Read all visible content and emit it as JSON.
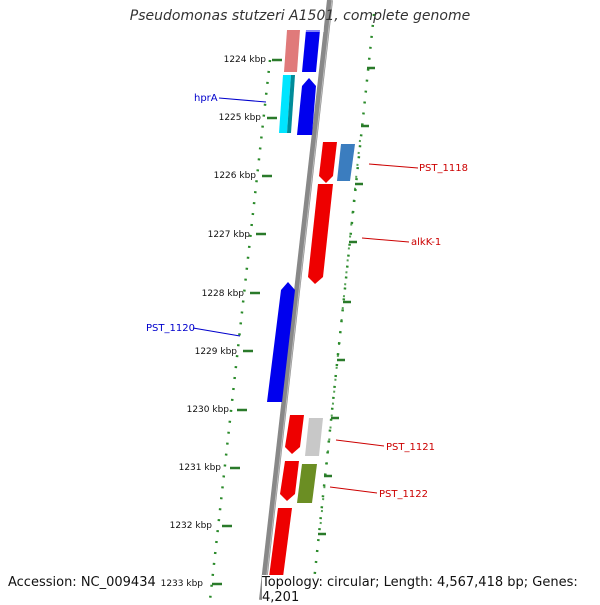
{
  "title": "Pseudomonas stutzeri A1501, complete genome",
  "accession": "Accession: NC_009434",
  "topology": "Topology: circular; Length: 4,567,418 bp; Genes: 4,201",
  "colors": {
    "backbone": "#888888",
    "tick": "#2a7a2a",
    "forward_label": "#0000cc",
    "reverse_label": "#cc0000"
  },
  "ruler": [
    {
      "label": "1224 kbp"
    },
    {
      "label": "1225 kbp"
    },
    {
      "label": "1226 kbp"
    },
    {
      "label": "1227 kbp"
    },
    {
      "label": "1228 kbp"
    },
    {
      "label": "1229 kbp"
    },
    {
      "label": "1230 kbp"
    },
    {
      "label": "1231 kbp"
    },
    {
      "label": "1232 kbp"
    },
    {
      "label": "1233 kbp"
    }
  ],
  "gene_labels": [
    {
      "text": "hprA",
      "strand": "forward"
    },
    {
      "text": "PST_1118",
      "strand": "reverse"
    },
    {
      "text": "alkK-1",
      "strand": "reverse"
    },
    {
      "text": "PST_1120",
      "strand": "forward"
    },
    {
      "text": "PST_1121",
      "strand": "reverse"
    },
    {
      "text": "PST_1122",
      "strand": "reverse"
    }
  ]
}
